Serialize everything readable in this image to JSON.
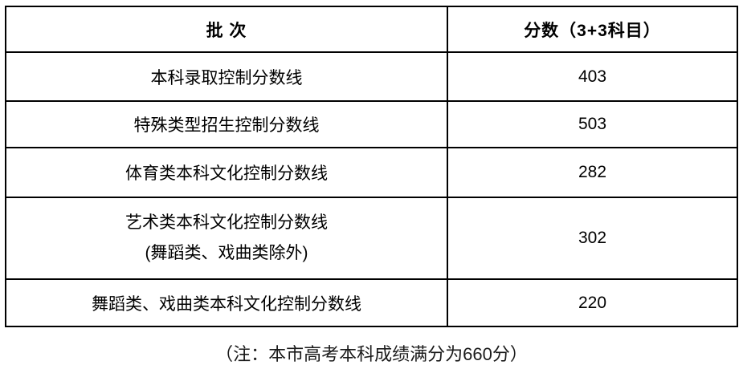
{
  "table": {
    "headers": {
      "batch": "批 次",
      "score": "分数（3+3科目）"
    },
    "rows": [
      {
        "batch": "本科录取控制分数线",
        "score": "403"
      },
      {
        "batch": "特殊类型招生控制分数线",
        "score": "503"
      },
      {
        "batch": "体育类本科文化控制分数线",
        "score": "282"
      },
      {
        "batch": "艺术类本科文化控制分数线",
        "batch_note": "(舞蹈类、戏曲类除外)",
        "score": "302"
      },
      {
        "batch": "舞蹈类、戏曲类本科文化控制分数线",
        "score": "220"
      }
    ]
  },
  "note": "（注：本市高考本科成绩满分为660分）"
}
